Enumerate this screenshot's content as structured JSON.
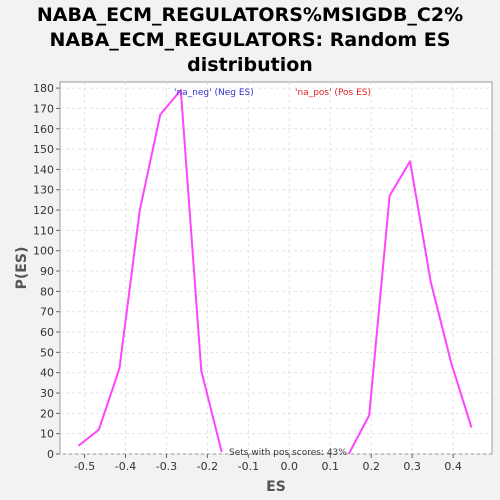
{
  "chart_data": {
    "type": "line",
    "title_lines": [
      "NABA_ECM_REGULATORS%MSIGDB_C2%",
      "NABA_ECM_REGULATORS: Random ES",
      "distribution"
    ],
    "xlabel": "ES",
    "ylabel": "P(ES)",
    "xlim": [
      -0.56,
      0.495
    ],
    "ylim": [
      0,
      183
    ],
    "xticks": [
      -0.5,
      -0.4,
      -0.3,
      -0.2,
      -0.1,
      0.0,
      0.1,
      0.2,
      0.3,
      0.4
    ],
    "xtick_labels": [
      "-0.5",
      "-0.4",
      "-0.3",
      "-0.2",
      "-0.1",
      "0.0",
      "0.1",
      "0.2",
      "0.3",
      "0.4"
    ],
    "yticks": [
      0,
      10,
      20,
      30,
      40,
      50,
      60,
      70,
      80,
      90,
      100,
      110,
      120,
      130,
      140,
      150,
      160,
      170,
      180
    ],
    "grid": true,
    "series": [
      {
        "name": "'na_neg' (Neg ES)",
        "color": "#ff44ff",
        "legend_color": "#3333cc",
        "x": [
          -0.515,
          -0.465,
          -0.415,
          -0.365,
          -0.315,
          -0.265,
          -0.215,
          -0.165
        ],
        "y": [
          4,
          12,
          42,
          120,
          167,
          179,
          41,
          1
        ]
      },
      {
        "name": "'na_pos' (Pos ES)",
        "color": "#ff44ff",
        "legend_color": "#dd2222",
        "x": [
          0.145,
          0.195,
          0.245,
          0.295,
          0.345,
          0.395,
          0.445
        ],
        "y": [
          0,
          19,
          127,
          144,
          85,
          45,
          13
        ]
      }
    ],
    "annotation": "Sets with pos scores: 43%",
    "legend_placement": "top"
  }
}
